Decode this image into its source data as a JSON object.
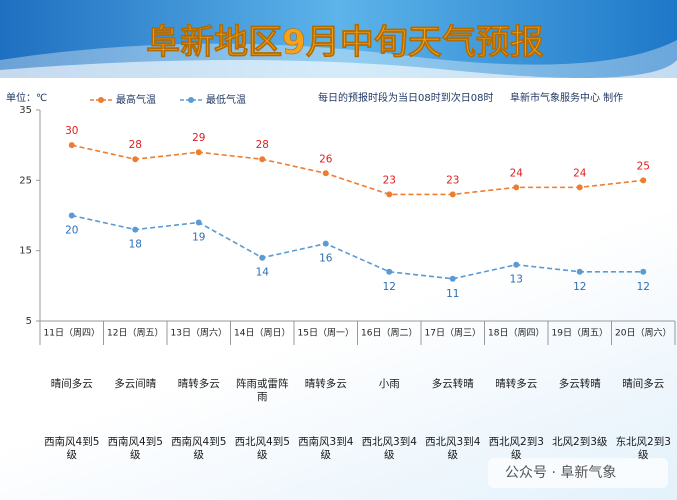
{
  "chart_data": {
    "type": "line",
    "title": "阜新地区9月中旬天气预报",
    "unit_label": "单位：℃",
    "note": "每日的预报时段为当日08时到次日08时",
    "producer": "阜新市气象服务中心 制作",
    "categories": [
      "11日（周四）",
      "12日（周五）",
      "13日（周六）",
      "14日（周日）",
      "15日（周一）",
      "16日（周二）",
      "17日（周三）",
      "18日（周四）",
      "19日（周五）",
      "20日（周六）"
    ],
    "series": [
      {
        "name": "最高气温",
        "color": "#ed7d31",
        "label_color": "#e02020",
        "values": [
          30,
          28,
          29,
          28,
          26,
          23,
          23,
          24,
          24,
          25
        ]
      },
      {
        "name": "最低气温",
        "color": "#5b9bd5",
        "label_color": "#2e6fb5",
        "values": [
          20,
          18,
          19,
          14,
          16,
          12,
          11,
          13,
          12,
          12
        ]
      }
    ],
    "weather": [
      "晴间多云",
      "多云间晴",
      "晴转多云",
      "阵雨或雷阵雨",
      "晴转多云",
      "小雨",
      "多云转晴",
      "晴转多云",
      "多云转晴",
      "晴间多云"
    ],
    "wind": [
      "西南风4到5级",
      "西南风4到5级",
      "西南风4到5级",
      "西北风4到5级",
      "西南风3到4级",
      "西北风3到4级",
      "西北风3到4级",
      "西北风2到3级",
      "北风2到3级",
      "东北风2到3级"
    ],
    "ylim": [
      5,
      35
    ],
    "yticks": [
      5,
      15,
      25,
      35
    ],
    "grid": false,
    "watermark": "公众号 · 阜新气象"
  }
}
